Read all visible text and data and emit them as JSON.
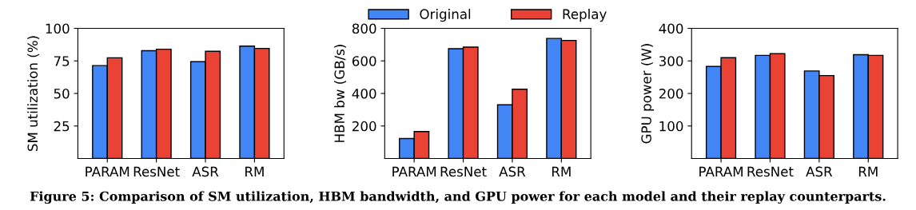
{
  "chart_data": [
    {
      "type": "bar",
      "ylabel": "SM utilization (%)",
      "categories": [
        "PARAM",
        "ResNet",
        "ASR",
        "RM"
      ],
      "ylim": [
        0,
        100
      ],
      "yticks": [
        25,
        50,
        75,
        100
      ],
      "grid": false,
      "series": [
        {
          "color": "#4285f4",
          "values": [
            71.4,
            82.8,
            74.4,
            86.4
          ]
        },
        {
          "color": "#ea4335",
          "values": [
            77.4,
            84,
            82.4,
            84.6
          ]
        }
      ]
    },
    {
      "type": "bar",
      "ylabel": "HBM bw (GB/s)",
      "categories": [
        "PARAM",
        "ResNet",
        "ASR",
        "RM"
      ],
      "ylim": [
        0,
        800
      ],
      "yticks": [
        200,
        400,
        600,
        800
      ],
      "grid": false,
      "legend": "top",
      "annotations": [
        "Figure 5: Comparison of SM utilization, HBM bandwidth, and GPU power for each model and their replay counterparts."
      ],
      "series": [
        {
          "name": "Original",
          "color": "#4285f4",
          "values": [
            123,
            675,
            330,
            738
          ]
        },
        {
          "name": "Replay",
          "color": "#ea4335",
          "values": [
            166,
            685,
            426,
            726
          ]
        }
      ]
    },
    {
      "type": "bar",
      "ylabel": "GPU power (W)",
      "categories": [
        "PARAM",
        "ResNet",
        "ASR",
        "RM"
      ],
      "ylim": [
        0,
        400
      ],
      "yticks": [
        100,
        200,
        300,
        400
      ],
      "grid": false,
      "series": [
        {
          "color": "#4285f4",
          "values": [
            283,
            317,
            269,
            319
          ]
        },
        {
          "color": "#ea4335",
          "values": [
            310,
            322,
            255,
            317
          ]
        }
      ]
    }
  ]
}
